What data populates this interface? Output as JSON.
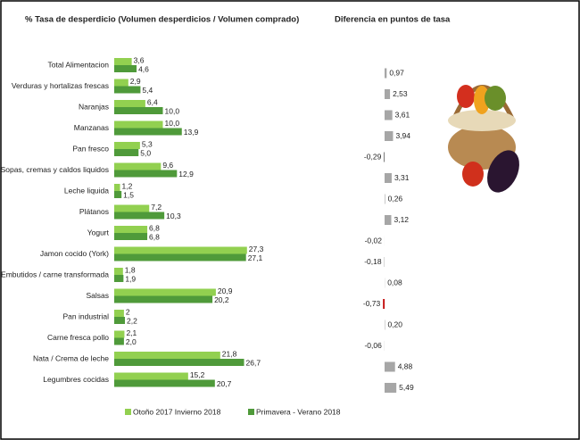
{
  "chart_data": [
    {
      "type": "hbar",
      "title": "% Tasa de desperdicio (Volumen desperdicios / Volumen comprado)",
      "categories": [
        "Total Alimentacion",
        "Verduras y hortalizas frescas",
        "Naranjas",
        "Manzanas",
        "Pan fresco",
        "Sopas, cremas y caldos liquidos",
        "Leche liquida",
        "Plátanos",
        "Yogurt",
        "Jamon cocido (York)",
        "Embutidos / carne transformada",
        "Salsas",
        "Pan industrial",
        "Carne fresca pollo",
        "Nata / Crema de leche",
        "Legumbres cocidas"
      ],
      "series": [
        {
          "name": "Otoño 2017 Invierno 2018",
          "color": "#92d050",
          "values": [
            3.6,
            2.9,
            6.4,
            10.0,
            5.3,
            9.6,
            1.2,
            7.2,
            6.8,
            27.3,
            1.8,
            20.9,
            2,
            2.1,
            21.8,
            15.2
          ],
          "value_labels": [
            "3,6",
            "2,9",
            "6,4",
            "10,0",
            "5,3",
            "9,6",
            "1,2",
            "7,2",
            "6,8",
            "27,3",
            "1,8",
            "20,9",
            "2",
            "2,1",
            "21,8",
            "15,2"
          ]
        },
        {
          "name": "Primavera - Verano 2018",
          "color": "#4f9a3a",
          "values": [
            4.6,
            5.4,
            10.0,
            13.9,
            5.0,
            12.9,
            1.5,
            10.3,
            6.8,
            27.1,
            1.9,
            20.2,
            2.2,
            2.0,
            26.7,
            20.7
          ],
          "value_labels": [
            "4,6",
            "5,4",
            "10,0",
            "13,9",
            "5,0",
            "12,9",
            "1,5",
            "10,3",
            "6,8",
            "27,1",
            "1,9",
            "20,2",
            "2,2",
            "2,0",
            "26,7",
            "20,7"
          ]
        }
      ]
    },
    {
      "type": "diffbar",
      "title": "Diferencia en puntos de tasa",
      "values": [
        0.97,
        2.53,
        3.61,
        3.94,
        -0.29,
        3.31,
        0.26,
        3.12,
        -0.02,
        -0.18,
        0.08,
        -0.73,
        0.2,
        -0.06,
        4.88,
        5.49
      ],
      "value_labels": [
        "0,97",
        "2,53",
        "3,61",
        "3,94",
        "-0,29",
        "3,31",
        "0,26",
        "3,12",
        "-0,02",
        "-0,18",
        "0,08",
        "-0,73",
        "0,20",
        "-0,06",
        "4,88",
        "5,49"
      ],
      "colors": [
        "#a6a6a6",
        "#a6a6a6",
        "#a6a6a6",
        "#a6a6a6",
        "#404040",
        "#a6a6a6",
        "#a6a6a6",
        "#a6a6a6",
        "#a6a6a6",
        "#a6a6a6",
        "#a6a6a6",
        "#c00000",
        "#a6a6a6",
        "#a6a6a6",
        "#a6a6a6",
        "#a6a6a6"
      ]
    }
  ]
}
